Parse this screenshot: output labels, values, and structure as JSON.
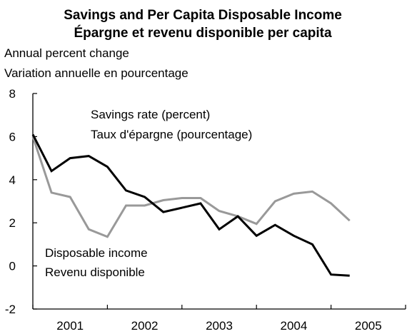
{
  "chart_data": {
    "type": "line",
    "title": "Savings and Per Capita Disposable Income",
    "subtitle": "Épargne et revenu disponible per capita",
    "ylabel": [
      "Annual percent change",
      "Variation annuelle en pourcentage"
    ],
    "ylim": [
      -2,
      8
    ],
    "yticks": [
      "8",
      "6",
      "4",
      "2",
      "0",
      "-2"
    ],
    "xlim": [
      2000.5,
      2005.5
    ],
    "xticks": [
      {
        "label": "2001",
        "x": 2001.0
      },
      {
        "label": "2002",
        "x": 2002.0
      },
      {
        "label": "2003",
        "x": 2003.0
      },
      {
        "label": "2004",
        "x": 2004.0
      },
      {
        "label": "2005",
        "x": 2005.0
      }
    ],
    "x": [
      2000.5,
      2000.75,
      2001.0,
      2001.25,
      2001.5,
      2001.75,
      2002.0,
      2002.25,
      2002.5,
      2002.75,
      2003.0,
      2003.25,
      2003.5,
      2003.75,
      2004.0,
      2004.25,
      2004.5,
      2004.75,
      2005.0
    ],
    "series": [
      {
        "name": "Savings rate (percent) / Taux d'épargne (pourcentage)",
        "label_lines": [
          "Savings rate (percent)",
          "Taux d'épargne (pourcentage)"
        ],
        "color": "#000000",
        "values": [
          6.1,
          4.4,
          5.0,
          5.1,
          4.6,
          3.5,
          3.2,
          2.5,
          2.7,
          2.9,
          1.7,
          2.3,
          1.4,
          1.9,
          1.4,
          1.0,
          -0.4,
          -0.45,
          null
        ]
      },
      {
        "name": "Disposable income / Revenu disponible",
        "label_lines": [
          "Disposable income",
          "Revenu disponible"
        ],
        "color": "#999999",
        "values": [
          6.0,
          3.4,
          3.2,
          1.7,
          1.35,
          2.8,
          2.8,
          3.05,
          3.15,
          3.15,
          2.55,
          2.3,
          1.95,
          3.0,
          3.35,
          3.45,
          2.9,
          2.1,
          null
        ]
      }
    ],
    "grid": false
  }
}
